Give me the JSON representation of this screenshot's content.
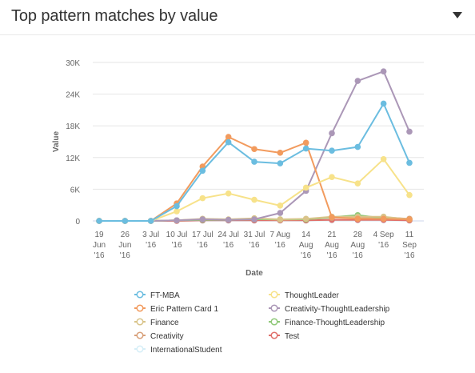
{
  "header": {
    "title": "Top pattern matches by value",
    "menu_icon": "caret-down-icon"
  },
  "chart_data": {
    "type": "line",
    "title": "",
    "xlabel": "Date",
    "ylabel": "Value",
    "ylim": [
      0,
      30000
    ],
    "yticks": [
      0,
      6000,
      12000,
      18000,
      24000,
      30000
    ],
    "ytick_labels": [
      "0",
      "6K",
      "12K",
      "18K",
      "24K",
      "30K"
    ],
    "grid": true,
    "legend_position": "bottom",
    "categories": [
      "19 Jun '16",
      "26 Jun '16",
      "3 Jul '16",
      "10 Jul '16",
      "17 Jul '16",
      "24 Jul '16",
      "31 Jul '16",
      "7 Aug '16",
      "14 Aug '16",
      "21 Aug '16",
      "28 Aug '16",
      "4 Sep '16",
      "11 Sep '16"
    ],
    "category_lines": [
      [
        "19",
        "Jun",
        "'16"
      ],
      [
        "26",
        "Jun",
        "'16"
      ],
      [
        "3 Jul",
        "'16"
      ],
      [
        "10 Jul",
        "'16"
      ],
      [
        "17 Jul",
        "'16"
      ],
      [
        "24 Jul",
        "'16"
      ],
      [
        "31 Jul",
        "'16"
      ],
      [
        "7 Aug",
        "'16"
      ],
      [
        "14",
        "Aug",
        "'16"
      ],
      [
        "21",
        "Aug",
        "'16"
      ],
      [
        "28",
        "Aug",
        "'16"
      ],
      [
        "4 Sep",
        "'16"
      ],
      [
        "11",
        "Sep",
        "'16"
      ]
    ],
    "series": [
      {
        "name": "FT-MBA",
        "color": "#6bbde0",
        "values": [
          0,
          0,
          0,
          2800,
          9500,
          14900,
          11200,
          10900,
          13700,
          13300,
          14000,
          22200,
          11000
        ]
      },
      {
        "name": "ThoughtLeader",
        "color": "#f7e28a",
        "values": [
          0,
          0,
          0,
          1800,
          4300,
          5200,
          4000,
          2900,
          6300,
          8300,
          7100,
          11700,
          4900
        ]
      },
      {
        "name": "Eric Pattern Card 1",
        "color": "#f29b5e",
        "values": [
          0,
          0,
          0,
          3300,
          10300,
          15900,
          13600,
          12900,
          14800,
          700,
          400,
          400,
          300
        ]
      },
      {
        "name": "Creativity-ThoughtLeadership",
        "color": "#ab97b7",
        "values": [
          0,
          0,
          0,
          100,
          300,
          200,
          300,
          1500,
          5700,
          16600,
          26500,
          28300,
          16900
        ]
      },
      {
        "name": "Finance",
        "color": "#d9c48a",
        "values": [
          0,
          0,
          0,
          100,
          400,
          300,
          500,
          300,
          400,
          800,
          800,
          800,
          300
        ]
      },
      {
        "name": "Finance-ThoughtLeadership",
        "color": "#8fc878",
        "values": [
          0,
          0,
          0,
          100,
          200,
          200,
          300,
          300,
          300,
          700,
          1100,
          500,
          300
        ]
      },
      {
        "name": "Creativity",
        "color": "#d8a07a",
        "values": [
          0,
          0,
          0,
          100,
          300,
          200,
          400,
          200,
          300,
          600,
          500,
          700,
          400
        ]
      },
      {
        "name": "Test",
        "color": "#e0706b",
        "values": [
          0,
          0,
          0,
          0,
          100,
          100,
          100,
          100,
          100,
          200,
          200,
          200,
          100
        ]
      },
      {
        "name": "InternationalStudent",
        "color": "#d6eef7",
        "values": [
          0,
          0,
          0,
          0,
          50,
          50,
          50,
          50,
          50,
          100,
          100,
          100,
          50
        ]
      }
    ]
  }
}
